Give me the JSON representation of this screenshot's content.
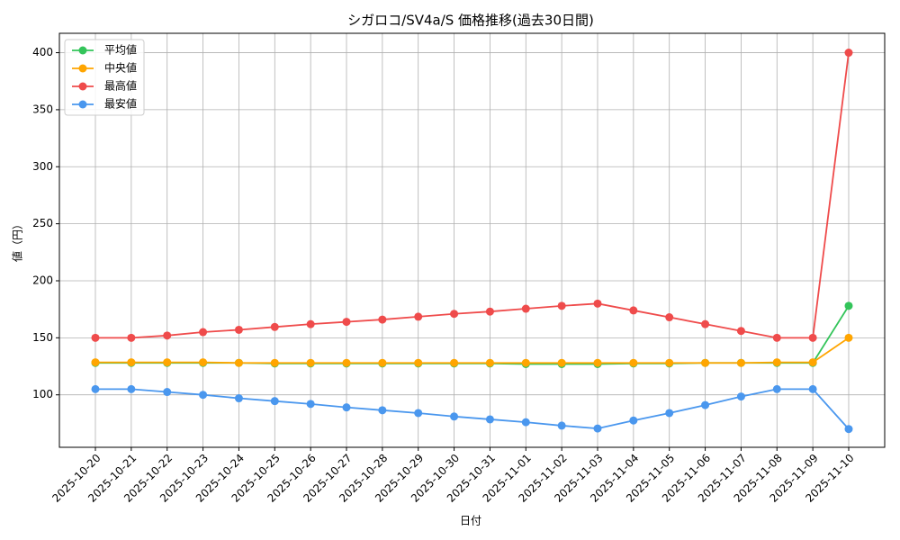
{
  "chart_data": {
    "type": "line",
    "title": "シガロコ/SV4a/S 価格推移(過去30日間)",
    "x_label": "日付",
    "y_label": "値（円）",
    "x": [
      "2025-10-20",
      "2025-10-21",
      "2025-10-22",
      "2025-10-23",
      "2025-10-24",
      "2025-10-25",
      "2025-10-26",
      "2025-10-27",
      "2025-10-28",
      "2025-10-29",
      "2025-10-30",
      "2025-10-31",
      "2025-11-01",
      "2025-11-02",
      "2025-11-03",
      "2025-11-04",
      "2025-11-05",
      "2025-11-06",
      "2025-11-07",
      "2025-11-08",
      "2025-11-09",
      "2025-11-10"
    ],
    "series": [
      {
        "name": "平均値",
        "color": "#33c45a",
        "values": [
          128,
          128,
          128,
          128,
          128,
          127.5,
          127.5,
          127.5,
          127.5,
          127.5,
          127.5,
          127.5,
          127,
          127,
          127,
          127.5,
          127.5,
          128,
          128,
          128,
          128,
          178
        ]
      },
      {
        "name": "中央値",
        "color": "#ffa500",
        "values": [
          128.5,
          128.5,
          128.5,
          128.5,
          128,
          128,
          128,
          128,
          128,
          128,
          128,
          128,
          128,
          128,
          128,
          128,
          128,
          128,
          128,
          128.5,
          128.5,
          150
        ]
      },
      {
        "name": "最高値",
        "color": "#ef4b4b",
        "values": [
          150,
          150,
          152,
          155,
          157,
          159.5,
          162,
          164,
          166,
          168.5,
          171,
          173,
          175.5,
          178,
          180,
          174,
          168,
          162,
          156,
          150,
          150,
          400
        ]
      },
      {
        "name": "最安値",
        "color": "#4a97ee",
        "values": [
          105,
          105,
          102.5,
          100,
          97,
          94.5,
          92,
          89,
          86.5,
          84,
          81,
          78.5,
          76,
          73,
          70.5,
          77.5,
          84,
          91,
          98.5,
          105,
          105,
          70
        ]
      }
    ],
    "ylim": [
      54,
      417
    ],
    "yticks": [
      100,
      150,
      200,
      250,
      300,
      350,
      400
    ],
    "grid": true,
    "legend": "upper-left"
  }
}
